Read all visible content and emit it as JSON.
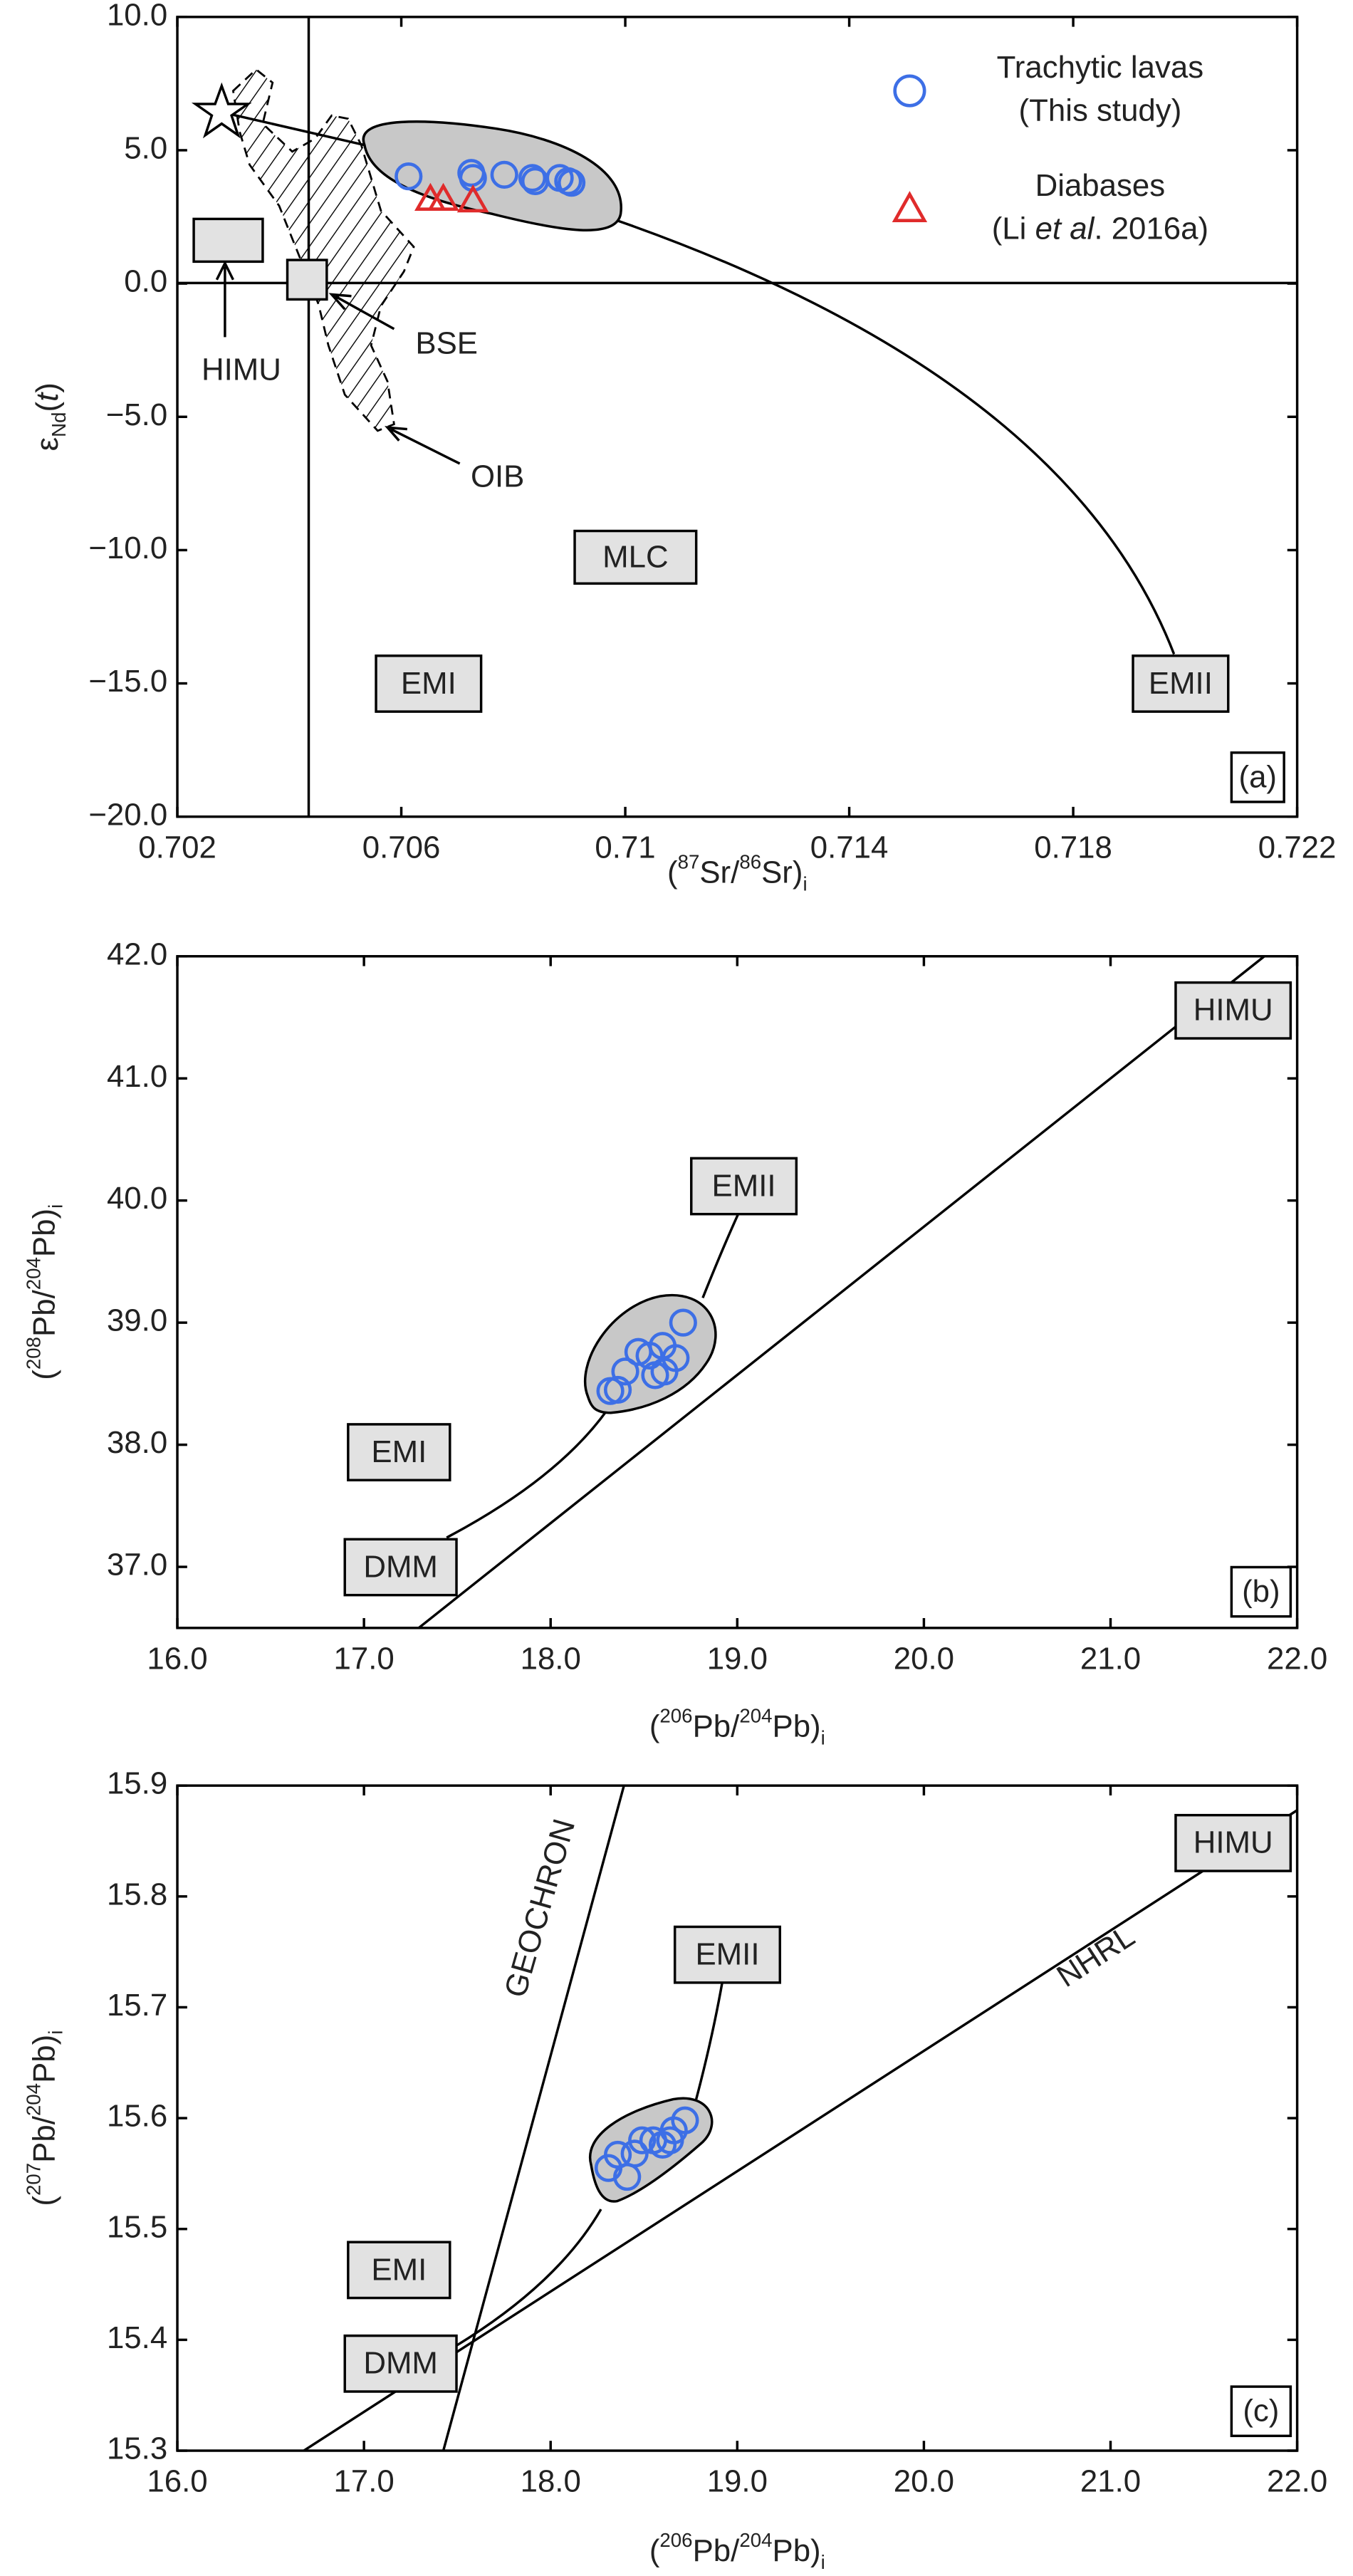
{
  "chart_data": [
    {
      "type": "scatter",
      "panel_label": "(a)",
      "x_label": [
        "(",
        "87",
        "Sr/",
        "86",
        "Sr)",
        "i"
      ],
      "y_label": [
        "ε",
        "Nd",
        "(",
        "t",
        ")"
      ],
      "xlim": [
        0.702,
        0.722
      ],
      "xticks": [
        0.702,
        0.706,
        0.71,
        0.714,
        0.718,
        0.722
      ],
      "ylim": [
        -20,
        10
      ],
      "yticks": [
        {
          "value": 10,
          "label": "10.0"
        },
        {
          "value": 5,
          "label": "5.0"
        },
        {
          "value": 0,
          "label": "0.0"
        },
        {
          "value": -5,
          "label": "−5.0"
        },
        {
          "value": -10,
          "label": "−10.0"
        },
        {
          "value": -15,
          "label": "−15.0"
        },
        {
          "value": -20,
          "label": "−20.0"
        }
      ],
      "annotations": [
        "HIMU",
        "BSE",
        "OIB",
        "MLC",
        "EMI",
        "EMII"
      ],
      "series": [
        {
          "name": "Trachytic lavas",
          "source": [
            "(This study)"
          ],
          "marker": "circle",
          "color": "#3d6fe6",
          "x": [
            0.70613,
            0.70725,
            0.70728,
            0.70784,
            0.70834,
            0.70839,
            0.70883,
            0.70898,
            0.70904
          ],
          "values": [
            4.02,
            4.15,
            3.96,
            4.08,
            3.96,
            3.84,
            3.96,
            3.84,
            3.78
          ]
        },
        {
          "name": "Diabases",
          "source": [
            "(Li ",
            "et al",
            ". 2016a)"
          ],
          "marker": "triangle",
          "color": "#e02b2b",
          "x": [
            0.70652,
            0.70675,
            0.70728
          ],
          "values": [
            3.16,
            3.16,
            3.1
          ]
        }
      ]
    },
    {
      "type": "scatter",
      "panel_label": "(b)",
      "x_label": [
        "(",
        "206",
        "Pb/",
        "204",
        "Pb)",
        "i"
      ],
      "y_label": [
        "(",
        "208",
        "Pb/",
        "204",
        "Pb)",
        "i"
      ],
      "xlim": [
        16,
        22
      ],
      "xticks": [
        {
          "value": 16,
          "label": "16.0"
        },
        {
          "value": 17,
          "label": "17.0"
        },
        {
          "value": 18,
          "label": "18.0"
        },
        {
          "value": 19,
          "label": "19.0"
        },
        {
          "value": 20,
          "label": "20.0"
        },
        {
          "value": 21,
          "label": "21.0"
        },
        {
          "value": 22,
          "label": "22.0"
        }
      ],
      "ylim": [
        36.5,
        42
      ],
      "yticks": [
        {
          "value": 37,
          "label": "37.0"
        },
        {
          "value": 38,
          "label": "38.0"
        },
        {
          "value": 39,
          "label": "39.0"
        },
        {
          "value": 40,
          "label": "40.0"
        },
        {
          "value": 41,
          "label": "41.0"
        },
        {
          "value": 42,
          "label": "42.0"
        }
      ],
      "annotations": [
        "HIMU",
        "EMII",
        "EMI",
        "DMM"
      ],
      "series": [
        {
          "marker": "circle",
          "color": "#3d6fe6",
          "x": [
            18.71,
            18.6,
            18.53,
            18.4,
            18.36,
            18.32,
            18.47,
            18.61,
            18.67,
            18.56
          ],
          "values": [
            39.0,
            38.81,
            38.73,
            38.6,
            38.45,
            38.44,
            38.76,
            38.6,
            38.71,
            38.57
          ]
        }
      ]
    },
    {
      "type": "scatter",
      "panel_label": "(c)",
      "x_label": [
        "(",
        "206",
        "Pb/",
        "204",
        "Pb)",
        "i"
      ],
      "y_label": [
        "(",
        "207",
        "Pb/",
        "204",
        "Pb)",
        "i"
      ],
      "xlim": [
        16,
        22
      ],
      "xticks": [
        {
          "value": 16,
          "label": "16.0"
        },
        {
          "value": 17,
          "label": "17.0"
        },
        {
          "value": 18,
          "label": "18.0"
        },
        {
          "value": 19,
          "label": "19.0"
        },
        {
          "value": 20,
          "label": "20.0"
        },
        {
          "value": 21,
          "label": "21.0"
        },
        {
          "value": 22,
          "label": "22.0"
        }
      ],
      "ylim": [
        15.3,
        15.9
      ],
      "yticks": [
        15.3,
        15.4,
        15.5,
        15.6,
        15.7,
        15.8,
        15.9
      ],
      "annotations": [
        "GEOCHRON",
        "NHRL",
        "HIMU",
        "EMII",
        "EMI",
        "DMM"
      ],
      "series": [
        {
          "marker": "circle",
          "color": "#3d6fe6",
          "x": [
            18.72,
            18.66,
            18.49,
            18.6,
            18.55,
            18.36,
            18.31,
            18.41,
            18.64,
            18.45
          ],
          "values": [
            15.598,
            15.589,
            15.58,
            15.576,
            15.58,
            15.567,
            15.555,
            15.547,
            15.58,
            15.568
          ]
        }
      ]
    }
  ]
}
